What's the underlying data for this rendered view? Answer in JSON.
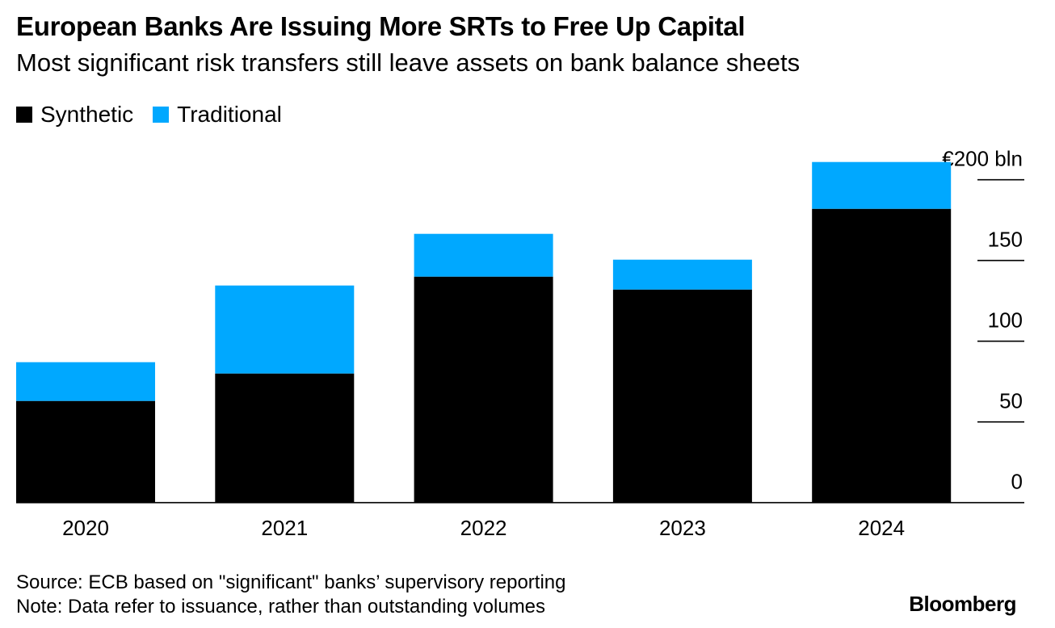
{
  "title": "European Banks Are Issuing More SRTs to Free Up Capital",
  "subtitle": "Most significant risk transfers still leave assets on bank balance sheets",
  "source": "Source: ECB based on \"significant\" banks’ supervisory reporting",
  "note": "Note: Data refer to issuance, rather than outstanding volumes",
  "logo": "Bloomberg",
  "chart_data": {
    "type": "bar",
    "stacked": true,
    "categories": [
      "2020",
      "2021",
      "2022",
      "2023",
      "2024"
    ],
    "series": [
      {
        "name": "Synthetic",
        "color": "#000000",
        "values": [
          63,
          80,
          140,
          132,
          182
        ]
      },
      {
        "name": "Traditional",
        "color": "#00a8ff",
        "values": [
          24,
          54.5,
          26.5,
          18.5,
          29
        ]
      }
    ],
    "yticks": [
      0,
      50,
      100,
      150,
      200
    ],
    "ytick_labels": [
      "0",
      "50",
      "100",
      "150",
      "€200 bln"
    ],
    "ylim": [
      0,
      200
    ],
    "yaxis_position": "right",
    "legend_placement": "top-left"
  }
}
